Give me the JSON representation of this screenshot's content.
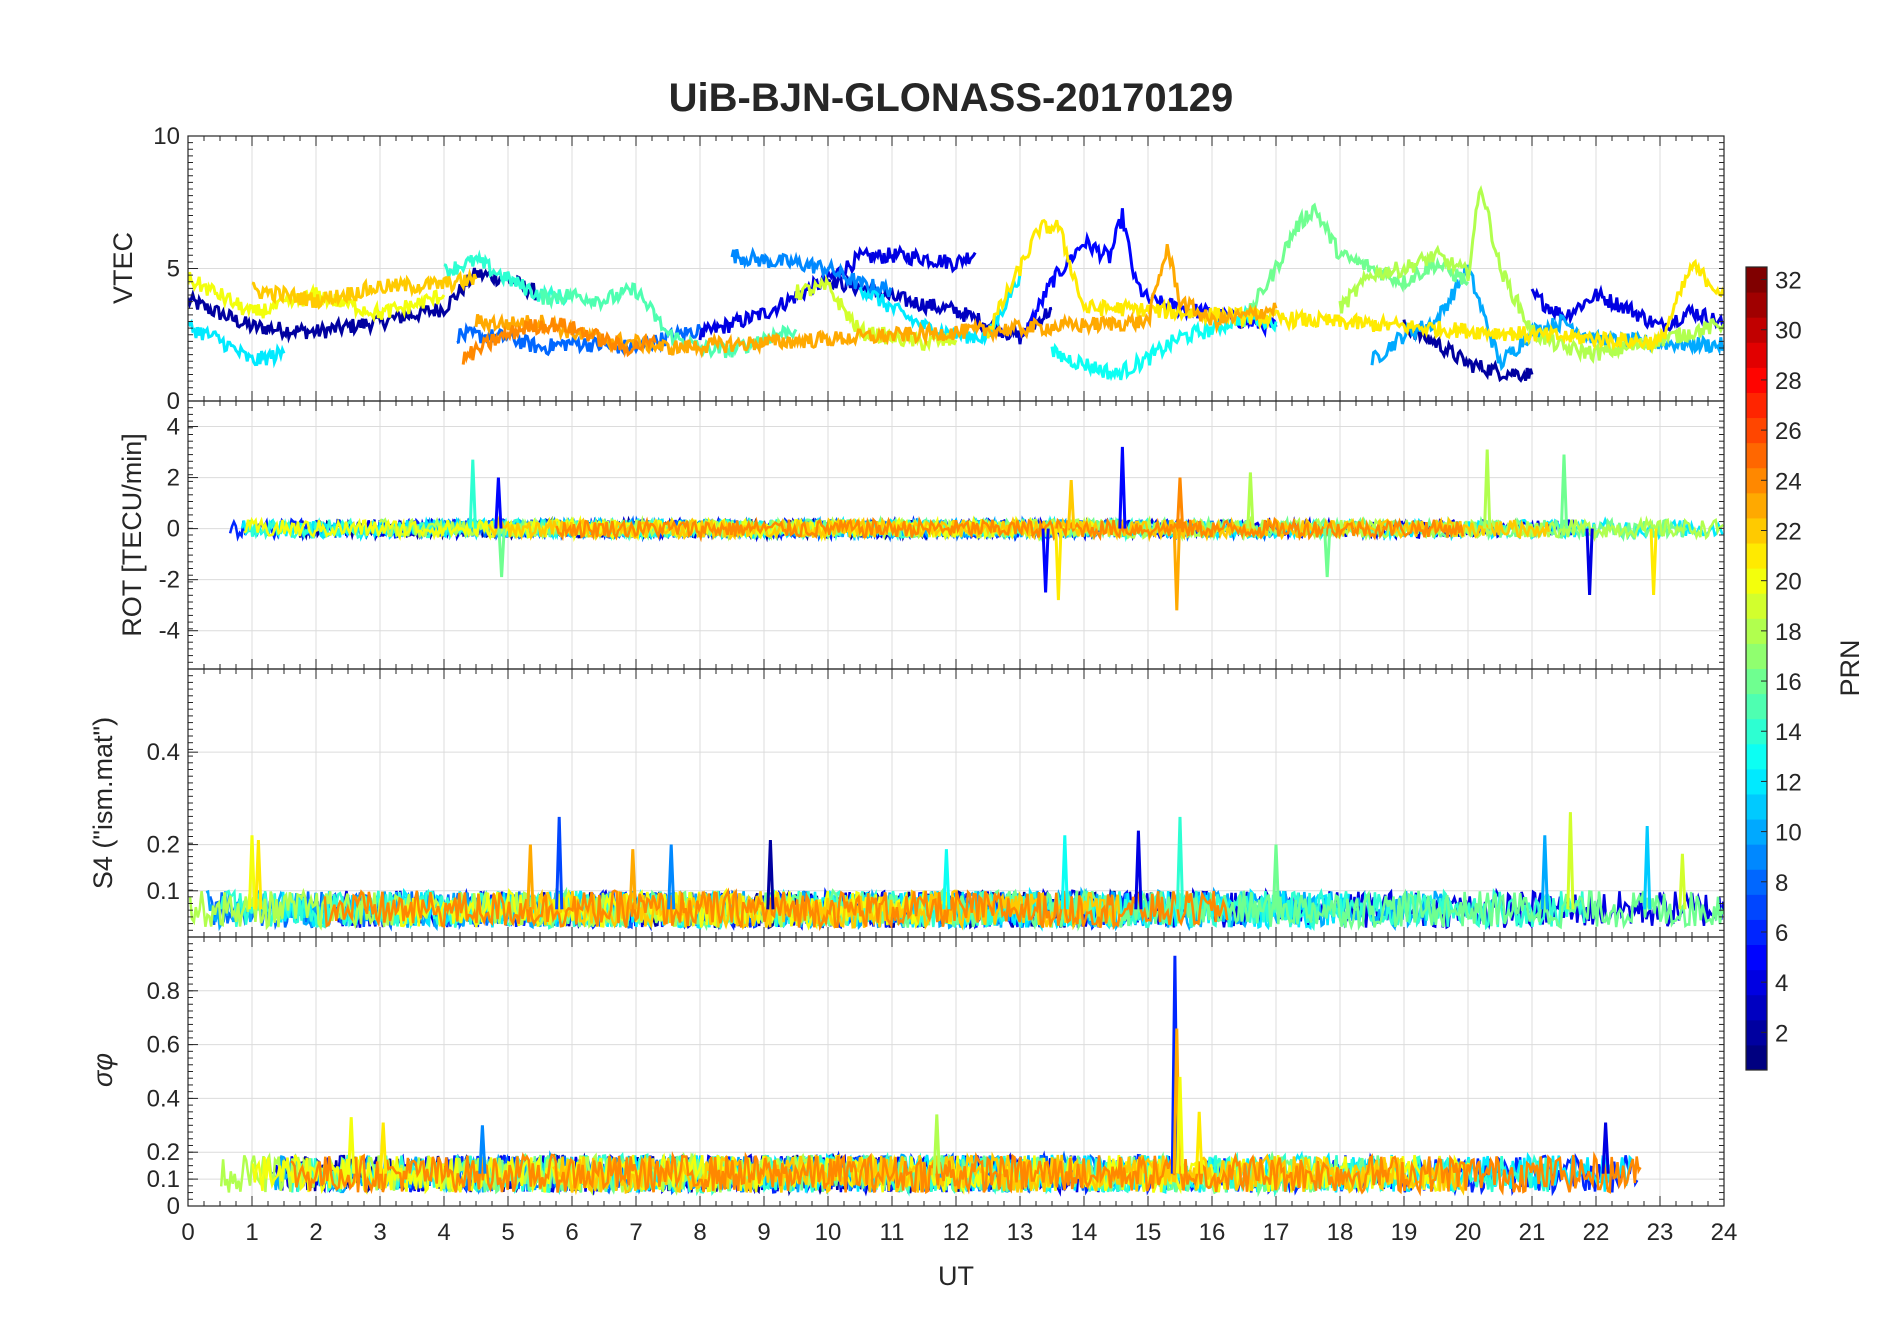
{
  "chart_data": {
    "type": "line",
    "title": "UiB-BJN-GLONASS-20170129",
    "xlabel": "UT",
    "xlim": [
      0,
      24
    ],
    "x_ticks": [
      0,
      1,
      2,
      3,
      4,
      5,
      6,
      7,
      8,
      9,
      10,
      11,
      12,
      13,
      14,
      15,
      16,
      17,
      18,
      19,
      20,
      21,
      22,
      23,
      24
    ],
    "colorbar": {
      "label": "PRN",
      "range": [
        1,
        32
      ],
      "ticks": [
        2,
        4,
        6,
        8,
        10,
        12,
        14,
        16,
        18,
        20,
        22,
        24,
        26,
        28,
        30,
        32
      ],
      "colormap": "jet",
      "colors": [
        "#00008f",
        "#0000ff",
        "#0080ff",
        "#00ffff",
        "#80ff80",
        "#ffff00",
        "#ff8000",
        "#ff0000",
        "#800000"
      ]
    },
    "panels": [
      {
        "id": "vtec",
        "ylabel": "VTEC",
        "ylim": [
          0,
          10
        ],
        "y_ticks": [
          0,
          5,
          10
        ],
        "series": [
          {
            "prn": 2,
            "x": [
              0,
              1,
              2,
              3,
              4,
              4.5,
              5,
              5.5
            ],
            "y": [
              3.8,
              2.8,
              2.6,
              3.0,
              3.5,
              4.8,
              4.6,
              4.0
            ]
          },
          {
            "prn": 4,
            "x": [
              8,
              9,
              10,
              10.5,
              11,
              11.5,
              12,
              12.3
            ],
            "y": [
              2.5,
              3.3,
              4.6,
              5.4,
              5.5,
              5.4,
              5.2,
              5.6
            ]
          },
          {
            "prn": 3,
            "x": [
              10,
              11,
              12,
              13,
              13.5
            ],
            "y": [
              4.6,
              3.9,
              3.4,
              2.4,
              3.5
            ]
          },
          {
            "prn": 5,
            "x": [
              13,
              13.5,
              14,
              14.4,
              14.6,
              14.8,
              15,
              15.5,
              16,
              16.5,
              17
            ],
            "y": [
              2.2,
              4.5,
              6.0,
              5.4,
              7.0,
              4.5,
              3.8,
              3.5,
              3.3,
              3.0,
              2.8
            ]
          },
          {
            "prn": 4,
            "x": [
              21,
              21.5,
              22,
              22.5,
              23,
              23.5,
              24
            ],
            "y": [
              4.0,
              3.2,
              4.0,
              3.5,
              2.8,
              3.4,
              2.9
            ]
          },
          {
            "prn": 2,
            "x": [
              19,
              19.5,
              20,
              20.5,
              21
            ],
            "y": [
              2.8,
              2.2,
              1.4,
              1.1,
              1.0
            ]
          },
          {
            "prn": 8,
            "x": [
              4.2,
              5,
              5.5,
              6,
              6.5,
              7,
              7.5,
              8
            ],
            "y": [
              2.5,
              2.4,
              2.0,
              2.2,
              2.1,
              2.0,
              2.4,
              2.7
            ]
          },
          {
            "prn": 9,
            "x": [
              8.5,
              9,
              9.5,
              10,
              10.5,
              11
            ],
            "y": [
              5.5,
              5.3,
              5.2,
              5.0,
              4.4,
              4.2
            ]
          },
          {
            "prn": 10,
            "x": [
              18.5,
              19,
              19.5,
              20,
              20.5,
              21,
              21.5,
              22,
              23,
              24
            ],
            "y": [
              1.5,
              2.5,
              3.0,
              5.0,
              1.4,
              2.6,
              3.0,
              2.3,
              2.2,
              2.1
            ]
          },
          {
            "prn": 12,
            "x": [
              0,
              0.5,
              1,
              1.5
            ],
            "y": [
              2.8,
              2.3,
              1.5,
              1.8
            ]
          },
          {
            "prn": 12,
            "x": [
              10.5,
              11,
              11.5,
              12,
              12.5,
              13
            ],
            "y": [
              4.3,
              3.5,
              2.8,
              2.5,
              2.4,
              4.8
            ]
          },
          {
            "prn": 13,
            "x": [
              13.5,
              14,
              14.5,
              15,
              15.5,
              16,
              16.5,
              17
            ],
            "y": [
              1.8,
              1.4,
              1.0,
              1.6,
              2.4,
              2.7,
              3.2,
              3.0
            ]
          },
          {
            "prn": 14,
            "x": [
              4,
              4.5,
              5,
              5.5,
              6
            ],
            "y": [
              4.9,
              5.3,
              4.6,
              4.0,
              3.9
            ]
          },
          {
            "prn": 15,
            "x": [
              5.5,
              6,
              6.5,
              7,
              7.5,
              8,
              8.5,
              9,
              9.5
            ],
            "y": [
              3.9,
              4.0,
              3.8,
              4.2,
              2.5,
              2.0,
              1.9,
              2.4,
              2.7
            ]
          },
          {
            "prn": 16,
            "x": [
              16.5,
              17,
              17.3,
              17.6,
              18,
              18.5,
              19,
              19.5,
              20
            ],
            "y": [
              3.0,
              5.0,
              6.5,
              7.3,
              5.5,
              5.0,
              4.5,
              5.2,
              4.5
            ]
          },
          {
            "prn": 18,
            "x": [
              18,
              18.5,
              19,
              19.5,
              20,
              20.2,
              20.5,
              21,
              21.5,
              22,
              22.5,
              23,
              23.5,
              24
            ],
            "y": [
              3.5,
              4.8,
              5.0,
              5.5,
              4.8,
              8.2,
              5.0,
              2.6,
              2.0,
              1.8,
              2.0,
              2.3,
              2.6,
              2.9
            ]
          },
          {
            "prn": 19,
            "x": [
              9.5,
              10,
              10.5,
              11,
              11.5,
              12
            ],
            "y": [
              4.1,
              4.3,
              2.6,
              2.4,
              2.2,
              2.3
            ]
          },
          {
            "prn": 20,
            "x": [
              0,
              0.5,
              1,
              2,
              3,
              3.5,
              4
            ],
            "y": [
              4.6,
              4.0,
              3.3,
              4.0,
              3.3,
              3.6,
              4.0
            ]
          },
          {
            "prn": 21,
            "x": [
              12.5,
              13,
              13.3,
              13.6,
              14,
              14.5,
              23,
              23.5,
              24
            ],
            "y": [
              2.6,
              5.0,
              6.5,
              6.6,
              3.5,
              3.5,
              2.2,
              5.1,
              4.0
            ]
          },
          {
            "prn": 22,
            "x": [
              1,
              2,
              3,
              4,
              4.5
            ],
            "y": [
              4.2,
              3.8,
              4.3,
              4.4,
              4.6
            ]
          },
          {
            "prn": 23,
            "x": [
              4.5,
              5,
              5.5,
              6,
              6.5,
              7,
              7.5,
              15,
              15.3,
              15.5,
              16,
              16.5,
              17
            ],
            "y": [
              3.0,
              2.9,
              3.0,
              2.6,
              2.3,
              2.2,
              2.0,
              3.0,
              5.8,
              3.8,
              3.0,
              3.2,
              3.5
            ]
          },
          {
            "prn": 24,
            "x": [
              4.3,
              4.8,
              5.3,
              5.8,
              6.3,
              6.8,
              7.3
            ],
            "y": [
              1.6,
              2.3,
              2.8,
              2.9,
              2.5,
              2.0,
              2.2
            ]
          }
        ]
      },
      {
        "id": "rot",
        "ylabel": "ROT [TECU/min]",
        "ylim": [
          -5.5,
          5
        ],
        "y_ticks": [
          -4,
          -2,
          0,
          2,
          4
        ],
        "spikes": [
          {
            "prn": 14,
            "x": 4.45,
            "y": 2.7
          },
          {
            "prn": 5,
            "x": 4.85,
            "y": 2.0
          },
          {
            "prn": 16,
            "x": 4.9,
            "y": -1.9
          },
          {
            "prn": 5,
            "x": 13.4,
            "y": -2.5
          },
          {
            "prn": 21,
            "x": 13.6,
            "y": -2.8
          },
          {
            "prn": 22,
            "x": 13.8,
            "y": 1.9
          },
          {
            "prn": 5,
            "x": 14.6,
            "y": 3.2
          },
          {
            "prn": 23,
            "x": 15.45,
            "y": -3.2
          },
          {
            "prn": 24,
            "x": 15.5,
            "y": 2.0
          },
          {
            "prn": 18,
            "x": 16.6,
            "y": 2.2
          },
          {
            "prn": 16,
            "x": 17.8,
            "y": -1.9
          },
          {
            "prn": 18,
            "x": 20.3,
            "y": 3.1
          },
          {
            "prn": 16,
            "x": 21.5,
            "y": 2.9
          },
          {
            "prn": 4,
            "x": 21.9,
            "y": -2.6
          },
          {
            "prn": 21,
            "x": 22.9,
            "y": -2.6
          }
        ]
      },
      {
        "id": "s4",
        "ylabel": "S4 (\"ism.mat\")",
        "ylim": [
          0,
          0.58
        ],
        "y_ticks": [
          0.1,
          0.2,
          0.4
        ],
        "spikes": [
          {
            "prn": 20,
            "x": 1.0,
            "y": 0.22
          },
          {
            "prn": 21,
            "x": 1.1,
            "y": 0.21
          },
          {
            "prn": 23,
            "x": 5.35,
            "y": 0.2
          },
          {
            "prn": 7,
            "x": 5.8,
            "y": 0.26
          },
          {
            "prn": 23,
            "x": 6.95,
            "y": 0.19
          },
          {
            "prn": 9,
            "x": 7.55,
            "y": 0.2
          },
          {
            "prn": 2,
            "x": 9.1,
            "y": 0.21
          },
          {
            "prn": 13,
            "x": 11.85,
            "y": 0.19
          },
          {
            "prn": 13,
            "x": 13.7,
            "y": 0.22
          },
          {
            "prn": 4,
            "x": 14.85,
            "y": 0.23
          },
          {
            "prn": 14,
            "x": 15.5,
            "y": 0.26
          },
          {
            "prn": 16,
            "x": 17.0,
            "y": 0.2
          },
          {
            "prn": 10,
            "x": 21.2,
            "y": 0.22
          },
          {
            "prn": 19,
            "x": 21.6,
            "y": 0.27
          },
          {
            "prn": 11,
            "x": 22.8,
            "y": 0.24
          },
          {
            "prn": 19,
            "x": 23.35,
            "y": 0.18
          }
        ]
      },
      {
        "id": "sigma_phi",
        "ylabel": "σφ",
        "ylim": [
          0,
          1
        ],
        "y_ticks": [
          0,
          0.1,
          0.2,
          0.4,
          0.6,
          0.8
        ],
        "spikes": [
          {
            "prn": 6,
            "x": 15.42,
            "y": 0.93
          },
          {
            "prn": 23,
            "x": 15.45,
            "y": 0.66
          },
          {
            "prn": 20,
            "x": 15.5,
            "y": 0.48
          },
          {
            "prn": 20,
            "x": 2.55,
            "y": 0.33
          },
          {
            "prn": 21,
            "x": 3.05,
            "y": 0.31
          },
          {
            "prn": 9,
            "x": 4.6,
            "y": 0.3
          },
          {
            "prn": 18,
            "x": 11.7,
            "y": 0.34
          },
          {
            "prn": 21,
            "x": 15.8,
            "y": 0.35
          },
          {
            "prn": 4,
            "x": 22.15,
            "y": 0.31
          }
        ]
      }
    ]
  }
}
